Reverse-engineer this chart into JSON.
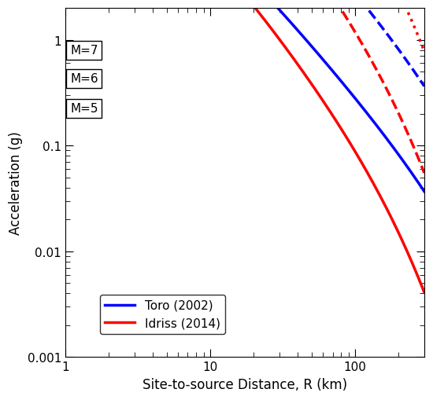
{
  "title": "",
  "xlabel": "Site-to-source Distance, R (km)",
  "ylabel": "Acceleration (g)",
  "xlim": [
    1,
    300
  ],
  "ylim": [
    0.001,
    2.0
  ],
  "blue_color": "#0000FF",
  "red_color": "#FF0000",
  "legend_labels": [
    "Toro (2002)",
    "Idriss (2014)"
  ],
  "line_width": 2.5,
  "bg_color": "#FFFFFF"
}
